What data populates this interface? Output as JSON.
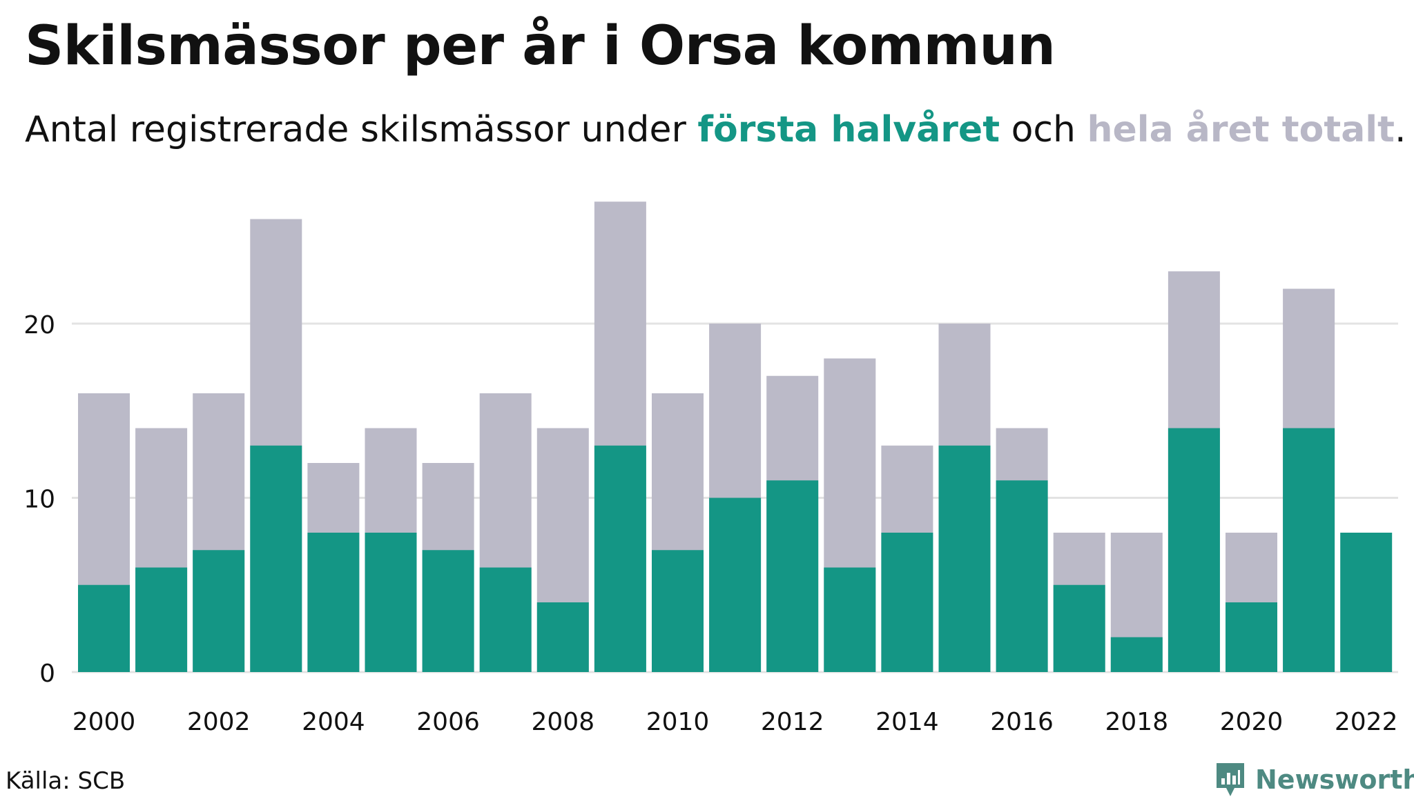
{
  "title": "Skilsmässor per år i Orsa kommun",
  "subtitle": {
    "prefix": "Antal registrerade skilsmässor under ",
    "first_half": "första halvåret",
    "middle": " och ",
    "total": "hela året totalt",
    "suffix": "."
  },
  "source": "Källa: SCB",
  "brand": "Newsworthy",
  "colors": {
    "first_half": "#149685",
    "total": "#bbbac8",
    "grid": "#e3e3e3",
    "text": "#111111",
    "brand": "#4e8a82"
  },
  "chart_data": {
    "type": "bar",
    "stacking": "overlay",
    "categories": [
      "2000",
      "2001",
      "2002",
      "2003",
      "2004",
      "2005",
      "2006",
      "2007",
      "2008",
      "2009",
      "2010",
      "2011",
      "2012",
      "2013",
      "2014",
      "2015",
      "2016",
      "2017",
      "2018",
      "2019",
      "2020",
      "2021",
      "2022"
    ],
    "series": [
      {
        "name": "hela året totalt",
        "values": [
          16,
          14,
          16,
          26,
          12,
          14,
          12,
          16,
          14,
          27,
          16,
          20,
          17,
          18,
          13,
          20,
          14,
          8,
          8,
          23,
          8,
          22,
          null
        ]
      },
      {
        "name": "första halvåret",
        "values": [
          5,
          6,
          7,
          13,
          8,
          8,
          7,
          6,
          4,
          13,
          7,
          10,
          11,
          6,
          8,
          13,
          11,
          5,
          2,
          14,
          4,
          14,
          8
        ]
      }
    ],
    "x_tick_labels": [
      "2000",
      "2002",
      "2004",
      "2006",
      "2008",
      "2010",
      "2012",
      "2014",
      "2016",
      "2018",
      "2020",
      "2022"
    ],
    "y_ticks": [
      0,
      10,
      20
    ],
    "ylim": [
      0,
      27
    ],
    "grid": true,
    "xlabel": "",
    "ylabel": ""
  }
}
